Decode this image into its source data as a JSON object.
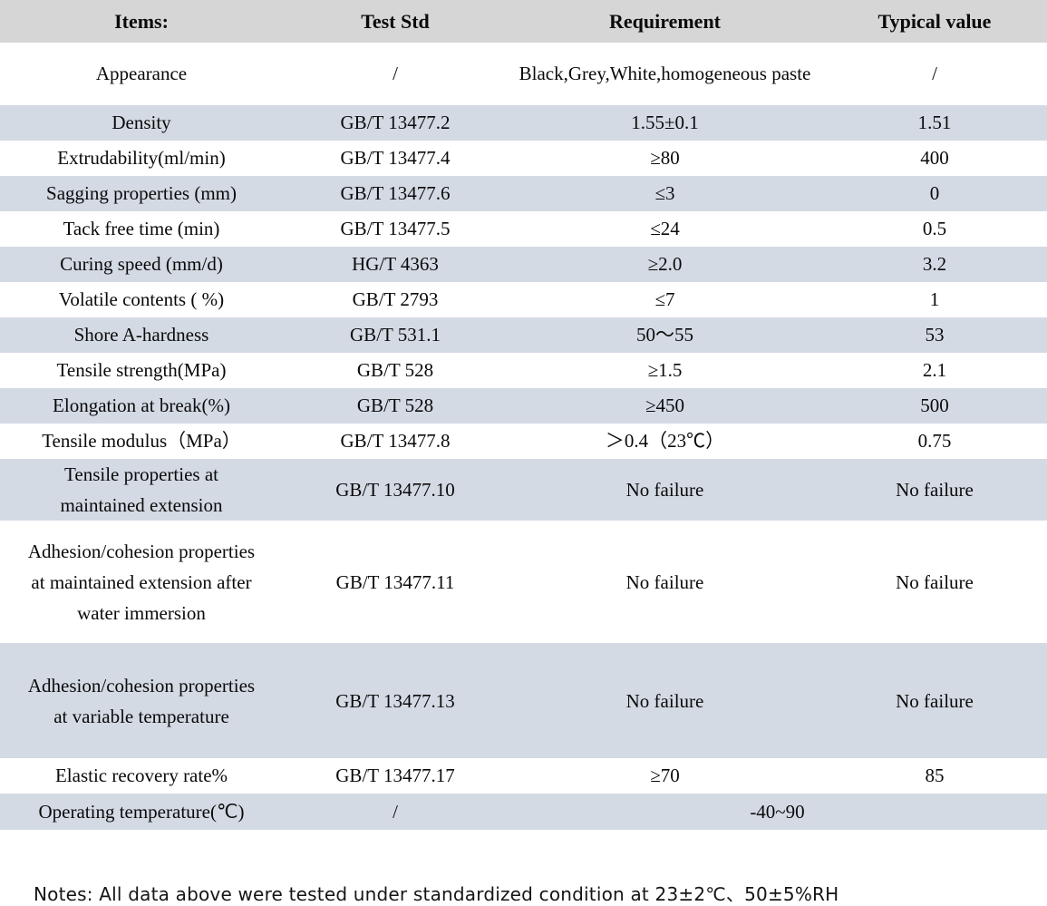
{
  "colors": {
    "header_bg": "#d6d6d6",
    "row_alt_bg": "#d4dae4",
    "row_bg": "#ffffff",
    "text": "#0a0a0a"
  },
  "table": {
    "columns": [
      "Items:",
      "Test Std",
      "Requirement",
      "Typical value"
    ],
    "rows": [
      {
        "item": "Appearance",
        "std": "/",
        "req": "Black,Grey,White,homogeneous paste",
        "typ": "/"
      },
      {
        "item": "Density",
        "std": "GB/T 13477.2",
        "req": "1.55±0.1",
        "typ": "1.51"
      },
      {
        "item": "Extrudability(ml/min)",
        "std": "GB/T 13477.4",
        "req": "≥80",
        "typ": "400"
      },
      {
        "item": "Sagging properties (mm)",
        "std": "GB/T 13477.6",
        "req": "≤3",
        "typ": "0"
      },
      {
        "item": "Tack free time (min)",
        "std": "GB/T 13477.5",
        "req": "≤24",
        "typ": "0.5"
      },
      {
        "item": "Curing speed (mm/d)",
        "std": "HG/T 4363",
        "req": "≥2.0",
        "typ": "3.2"
      },
      {
        "item": "Volatile contents ( %)",
        "std": "GB/T 2793",
        "req": "≤7",
        "typ": "1"
      },
      {
        "item": "Shore A-hardness",
        "std": "GB/T 531.1",
        "req": "50～55",
        "typ": "53"
      },
      {
        "item": "Tensile strength(MPa)",
        "std": "GB/T 528",
        "req": "≥1.5",
        "typ": "2.1"
      },
      {
        "item": "Elongation at break(%)",
        "std": "GB/T 528",
        "req": "≥450",
        "typ": "500"
      },
      {
        "item": "Tensile modulus（MPa）",
        "std": "GB/T 13477.8",
        "req": "＞0.4（23℃）",
        "typ": "0.75"
      },
      {
        "item": "Tensile properties at maintained extension",
        "std": "GB/T 13477.10",
        "req": "No failure",
        "typ": "No failure"
      },
      {
        "item": "Adhesion/cohesion properties at maintained extension after water immersion",
        "std": "GB/T 13477.11",
        "req": "No failure",
        "typ": "No failure"
      },
      {
        "item": "Adhesion/cohesion properties at variable temperature",
        "std": "GB/T 13477.13",
        "req": "No failure",
        "typ": "No failure"
      },
      {
        "item": "Elastic recovery rate%",
        "std": "GB/T 13477.17",
        "req": "≥70",
        "typ": "85"
      },
      {
        "item": "Operating temperature(℃)",
        "std": "/",
        "req": "-40~90",
        "typ": "",
        "merged": true
      }
    ]
  },
  "notes": {
    "text": "Notes: All data above were tested under standardized condition at 23±2℃、50±5%RH"
  }
}
